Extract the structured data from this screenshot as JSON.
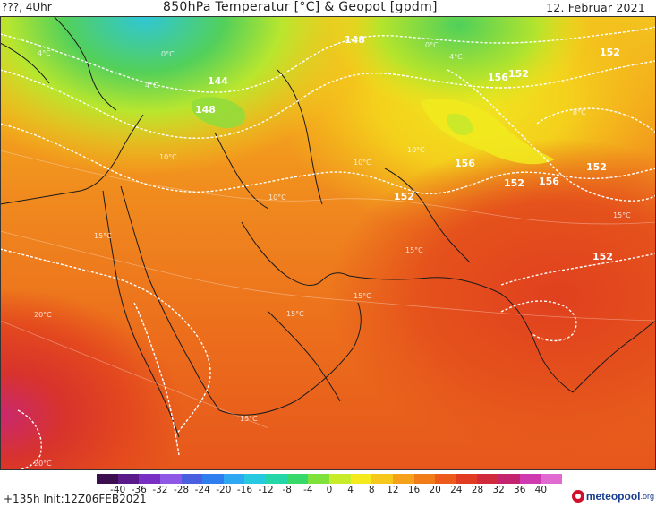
{
  "header": {
    "left": "???, 4Uhr",
    "title": "850hPa Temperatur [°C] & Geopot [gpdm]",
    "date": "12. Februar 2021"
  },
  "map": {
    "contour_labels": {
      "c148a": "148",
      "c148b": "148",
      "c144": "144",
      "c152a": "152",
      "c152b": "152",
      "c152c": "152",
      "c152d": "152",
      "c152e": "152",
      "c152f": "152",
      "c156a": "156",
      "c156b": "156",
      "c156c": "156"
    },
    "temp_labels": {
      "t0a": "0°C",
      "t0b": "0°C",
      "t4a": "4°C",
      "t4b": "4°C",
      "t4c": "4°C",
      "t8": "8°C",
      "t10a": "10°C",
      "t10b": "10°C",
      "t10c": "10°C",
      "t10d": "10°C",
      "t15a": "15°C",
      "t15b": "15°C",
      "t15c": "15°C",
      "t15d": "15°C",
      "t15e": "15°C",
      "t15f": "15°C",
      "t20a": "20°C",
      "t20b": "20°C"
    }
  },
  "colorbar": {
    "labels": [
      "-40",
      "-36",
      "-32",
      "-28",
      "-24",
      "-20",
      "-16",
      "-12",
      "-8",
      "-4",
      "0",
      "4",
      "8",
      "12",
      "16",
      "20",
      "24",
      "28",
      "32",
      "36",
      "40"
    ],
    "colors": [
      "#3b0f4f",
      "#5a1a8a",
      "#7a2fc4",
      "#8f57e6",
      "#4a5fe0",
      "#2f7ef0",
      "#2fa8f2",
      "#27c9e0",
      "#24d6a8",
      "#37d96a",
      "#7fe23a",
      "#c8ec2a",
      "#f5ea1e",
      "#f7c81c",
      "#f5a21a",
      "#f27d18",
      "#ec5a1c",
      "#e13b22",
      "#d12a3c",
      "#c4236f",
      "#d03ab0",
      "#e06ad0"
    ]
  },
  "footer": {
    "run_info": "+135h Init:12Z06FEB2021",
    "logo_main": "meteopool",
    "logo_tld": ".org"
  },
  "colors": {
    "orange_base": "#f08a1e",
    "red_south": "#e0481e",
    "yellow_north": "#f2d21c",
    "green_cold": "#5fd24a",
    "magenta_hot": "#c8286e"
  }
}
